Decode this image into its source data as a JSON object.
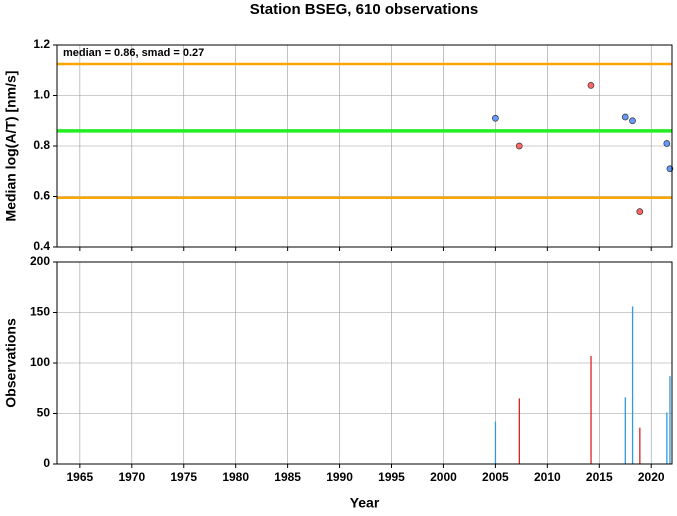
{
  "chart_data": [
    {
      "type": "scatter",
      "title": "Station BSEG, 610 observations",
      "ylabel": "Median log(A/T) [nm/s]",
      "annotation": "median = 0.86, smad = 0.27",
      "xlim": [
        1962.8,
        2022
      ],
      "xticks": [
        1965,
        1970,
        1975,
        1980,
        1985,
        1990,
        1995,
        2000,
        2005,
        2010,
        2015,
        2020
      ],
      "ylim": [
        0.4,
        1.2
      ],
      "yticks": [
        0.4,
        0.6,
        0.8,
        {
          "value": 1,
          "label": "1.0"
        },
        1.2
      ],
      "grid": true,
      "x": [
        2005.0,
        2007.3,
        2014.2,
        2017.5,
        2018.2,
        2018.9,
        2021.5,
        2021.8
      ],
      "values": [
        0.91,
        0.8,
        1.04,
        0.915,
        0.9,
        0.54,
        0.81,
        0.71
      ],
      "colors": [
        "#6699ff",
        "#ff6666",
        "#ff6666",
        "#6699ff",
        "#6699ff",
        "#ff6666",
        "#6699ff",
        "#6699ff"
      ],
      "hlines": [
        {
          "value": 1.125,
          "color": "#ffa500"
        },
        {
          "value": 0.86,
          "color": "#22ee22"
        },
        {
          "value": 0.595,
          "color": "#ffa500"
        }
      ]
    },
    {
      "type": "bar",
      "xlabel": "Year",
      "ylabel": "Observations",
      "xlim": [
        1962.8,
        2022
      ],
      "xticks": [
        1965,
        1970,
        1975,
        1980,
        1985,
        1990,
        1995,
        2000,
        2005,
        2010,
        2015,
        2020
      ],
      "ylim": [
        0,
        200
      ],
      "yticks": [
        0,
        50,
        100,
        150,
        200
      ],
      "grid": true,
      "x": [
        2005.0,
        2007.3,
        2014.2,
        2017.5,
        2018.2,
        2018.9,
        2021.5,
        2021.8
      ],
      "values": [
        42,
        65,
        107,
        66,
        156,
        36,
        51,
        87
      ],
      "colors": [
        "#3399dd",
        "#dd2222",
        "#dd2222",
        "#3399dd",
        "#3399dd",
        "#dd2222",
        "#3399dd",
        "#3399dd"
      ]
    }
  ]
}
